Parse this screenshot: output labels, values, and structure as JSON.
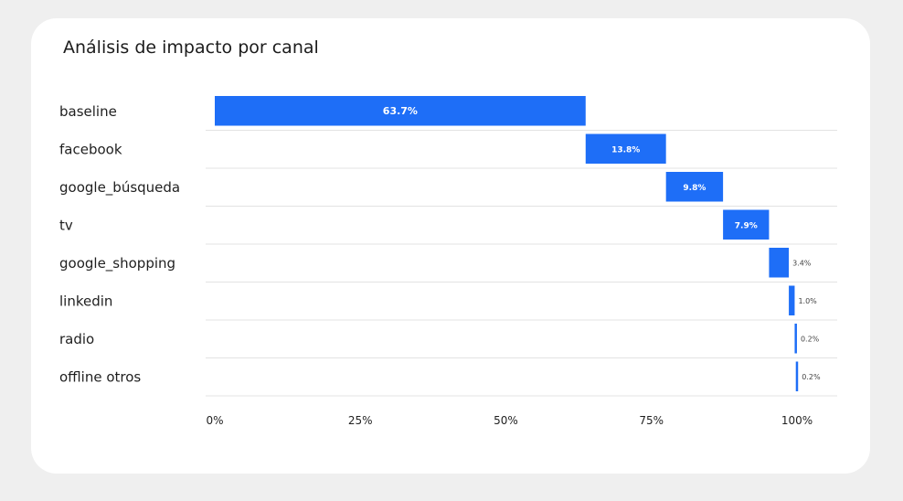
{
  "chart_data": {
    "type": "bar",
    "subtype": "waterfall-horizontal",
    "title": "Análisis de impacto por canal",
    "categories": [
      "baseline",
      "facebook",
      "google_búsqueda",
      "tv",
      "google_shopping",
      "linkedin",
      "radio",
      "offline otros"
    ],
    "values": [
      63.7,
      13.8,
      9.8,
      7.9,
      3.4,
      1.0,
      0.2,
      0.2
    ],
    "value_labels": [
      "63.7%",
      "13.8%",
      "9.8%",
      "7.9%",
      "3.4%",
      "1.0%",
      "0.2%",
      "0.2%"
    ],
    "x_ticks": [
      "0%",
      "25%",
      "50%",
      "75%",
      "100%"
    ],
    "x_tick_values": [
      0,
      25,
      50,
      75,
      100
    ],
    "xlim": [
      0,
      100
    ],
    "xlabel": "",
    "ylabel": "",
    "bar_color": "#1e6ef7",
    "grid": "horizontal row separators",
    "legend": "none"
  }
}
